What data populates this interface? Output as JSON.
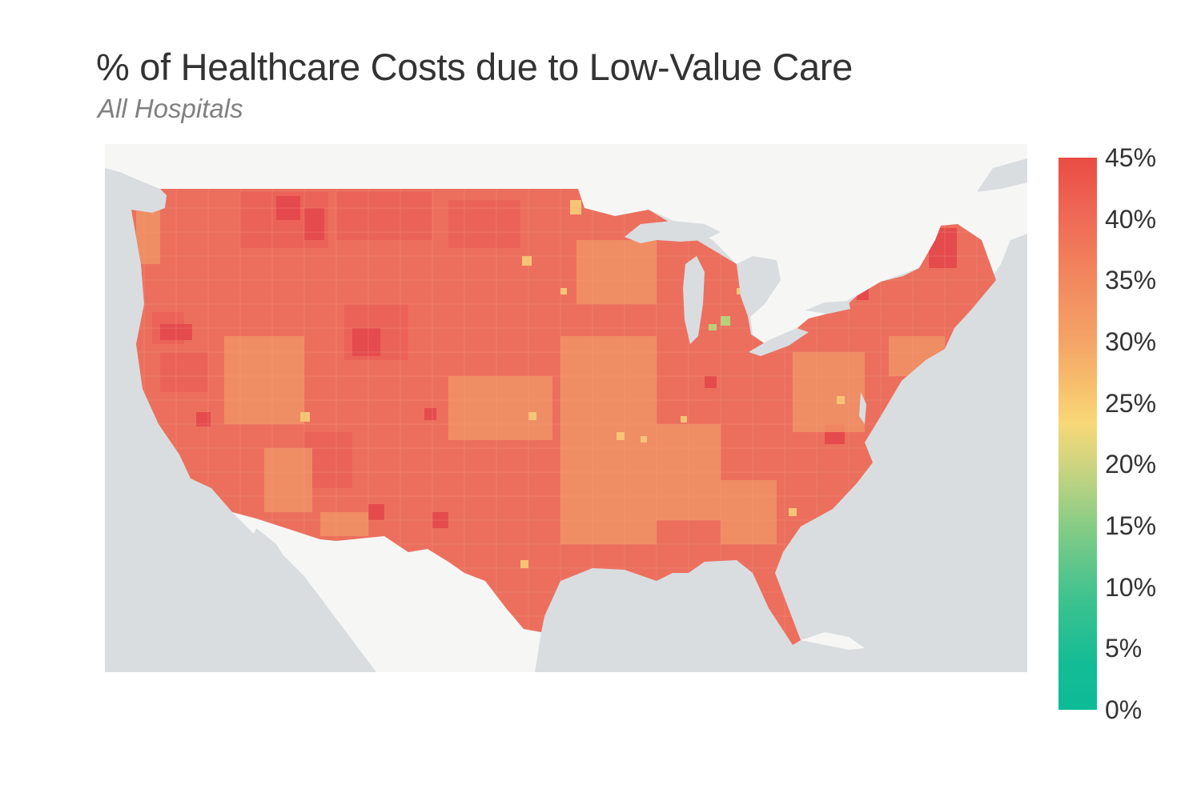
{
  "title": "% of Healthcare Costs due to Low-Value Care",
  "subtitle": "All Hospitals",
  "colors": {
    "ocean": "#d9dde0",
    "land_background": "#f5f5f4",
    "county_base": "#ec6f5d",
    "county_high": "#e5474a",
    "county_mid": "#f09868",
    "county_low": "#f6c978",
    "county_green": "#b9d07a"
  },
  "colorbar": {
    "ticks": [
      "45%",
      "40%",
      "35%",
      "30%",
      "25%",
      "20%",
      "15%",
      "10%",
      "5%",
      "0%"
    ],
    "colors": [
      "#ea4c44",
      "#ef6a56",
      "#f2885e",
      "#f4a367",
      "#f7c26d",
      "#f9d777",
      "#cbd480",
      "#7fcb86",
      "#3dc28f",
      "#13bc95"
    ]
  }
}
